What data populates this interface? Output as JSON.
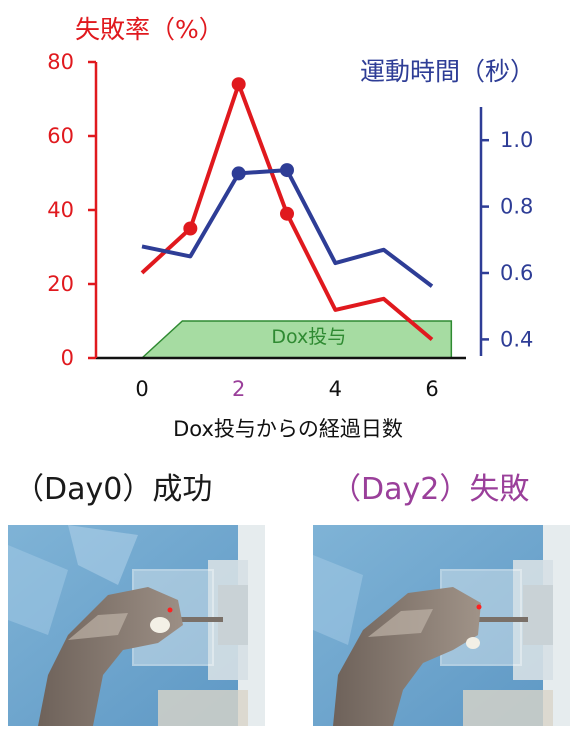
{
  "chart_data": {
    "type": "line",
    "x_label": "Dox投与からの経過日数",
    "x_ticks": [
      "0",
      "2",
      "4",
      "6"
    ],
    "x_highlight_tick": "2",
    "xlim": [
      0,
      6
    ],
    "left_axis": {
      "label": "失敗率（%）",
      "ylim": [
        0,
        80
      ],
      "ticks": [
        "0",
        "20",
        "40",
        "60",
        "80"
      ],
      "color": "#e0191e"
    },
    "right_axis": {
      "label": "運動時間（秒）",
      "ylim": [
        0.35,
        1.1
      ],
      "ticks": [
        "0.4",
        "0.6",
        "0.8",
        "1.0"
      ],
      "color": "#2e3d96"
    },
    "series": [
      {
        "axis": "left",
        "color": "#e0191e",
        "x": [
          0,
          1,
          2,
          3,
          4,
          5,
          6
        ],
        "y": [
          23,
          35,
          74,
          39,
          13,
          16,
          5
        ],
        "markers": [
          1,
          2,
          3
        ]
      },
      {
        "axis": "right",
        "color": "#2e3d96",
        "x": [
          0,
          1,
          2,
          3,
          4,
          5,
          6
        ],
        "y": [
          0.68,
          0.65,
          0.9,
          0.91,
          0.63,
          0.67,
          0.56
        ],
        "markers": [
          2,
          3
        ]
      }
    ],
    "annotation": {
      "text": "Dox投与",
      "x_start": 0,
      "x_ramp_end": 1,
      "x_end": 6.4,
      "top_value": 10,
      "fill": "#a6dca2",
      "stroke": "#2f8a32",
      "text_color": "#2f8a32"
    },
    "highlight_color": "#9a3f9a"
  },
  "captions": {
    "left": "（Day0）成功",
    "right": "（Day2）失敗",
    "left_color": "#1a1a1a",
    "right_color": "#9a3f9a"
  }
}
